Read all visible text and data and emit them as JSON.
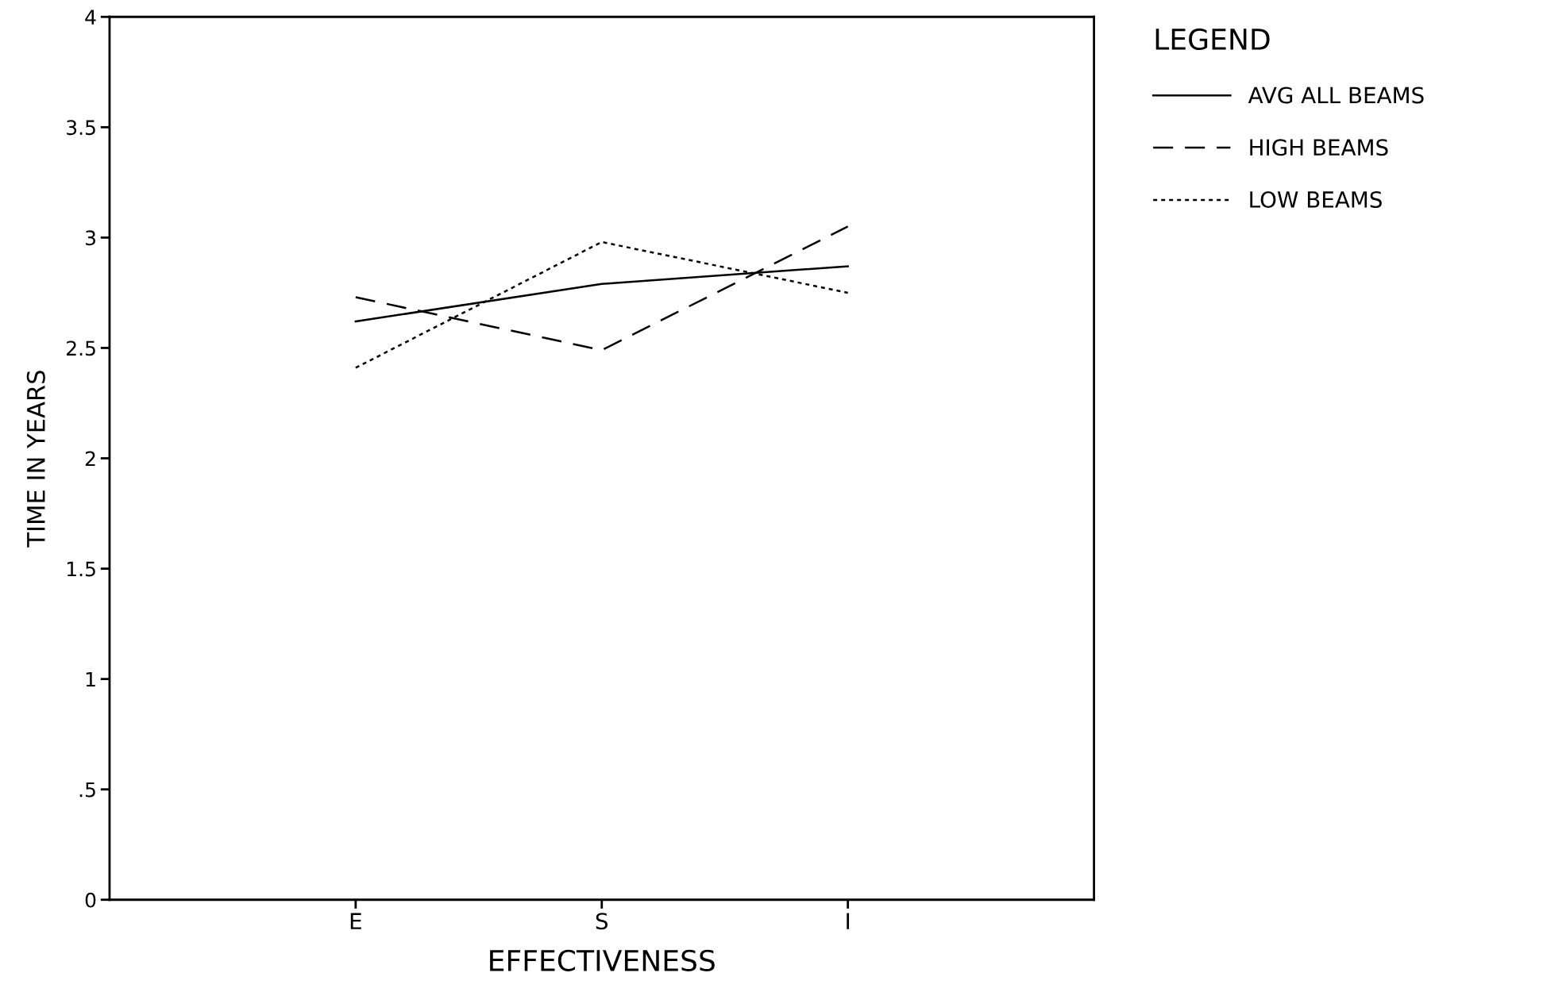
{
  "chart_data": {
    "type": "line",
    "xlabel": "EFFECTIVENESS",
    "ylabel": "TIME IN YEARS",
    "legend_title": "LEGEND",
    "legend": "top right",
    "categories": [
      "E",
      "S",
      "I"
    ],
    "series": [
      {
        "name": "AVG ALL BEAMS",
        "color": "#000000",
        "line_style": "solid",
        "values": [
          2.62,
          2.79,
          2.87
        ]
      },
      {
        "name": "HIGH BEAMS",
        "color": "#000000",
        "line_style": "dashed",
        "values": [
          2.73,
          2.49,
          3.05
        ]
      },
      {
        "name": "LOW BEAMS",
        "color": "#000000",
        "line_style": "dotted",
        "values": [
          2.41,
          2.98,
          2.75
        ]
      }
    ],
    "ylim": [
      0,
      4
    ],
    "yticks": [
      0,
      {
        "value": 0.5,
        "label": ".5"
      },
      1,
      1.5,
      2,
      2.5,
      3,
      3.5,
      4
    ],
    "grid": false,
    "marker": "none"
  }
}
